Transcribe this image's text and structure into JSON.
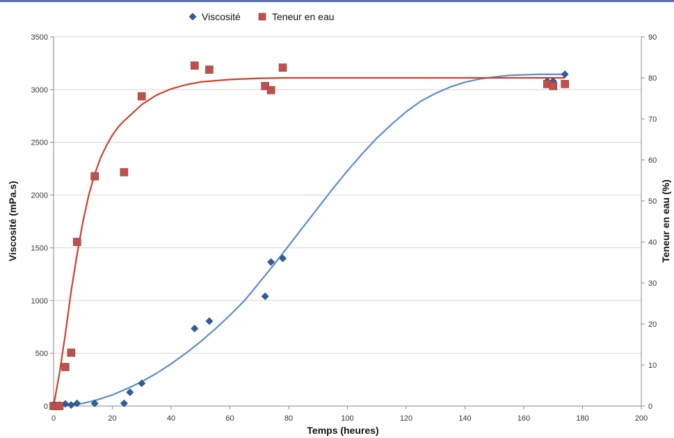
{
  "chart_data": {
    "type": "scatter",
    "xlabel": "Temps (heures)",
    "ylabel": "Viscosité (mPa.s)",
    "y2label": "Teneur en eau (%)",
    "xlim": [
      0,
      200
    ],
    "ylim": [
      0,
      3500
    ],
    "y2lim": [
      0,
      90
    ],
    "xticks": [
      0,
      20,
      40,
      60,
      80,
      100,
      120,
      140,
      160,
      180,
      200
    ],
    "yticks": [
      0,
      500,
      1000,
      1500,
      2000,
      2500,
      3000,
      3500
    ],
    "y2ticks": [
      0,
      10,
      20,
      30,
      40,
      50,
      60,
      70,
      80,
      90
    ],
    "grid": true,
    "legend_position": "top",
    "series": [
      {
        "name": "Viscosité",
        "axis": "left",
        "marker": "diamond",
        "color": "#2e5f9e",
        "x": [
          0,
          2,
          4,
          6,
          8,
          14,
          24,
          26,
          30,
          48,
          53,
          72,
          74,
          78,
          168,
          170,
          174
        ],
        "y": [
          10,
          10,
          20,
          10,
          25,
          25,
          25,
          130,
          215,
          735,
          805,
          1040,
          1365,
          1400,
          3080,
          3080,
          3145
        ]
      },
      {
        "name": "Teneur en eau",
        "axis": "right",
        "marker": "square",
        "color": "#c0504d",
        "x": [
          0,
          1,
          2,
          4,
          6,
          8,
          14,
          24,
          30,
          48,
          53,
          72,
          74,
          78,
          168,
          170,
          174
        ],
        "y": [
          0,
          0,
          0,
          9.5,
          13,
          40,
          56,
          57,
          75.5,
          83,
          82,
          78,
          77,
          82.5,
          78.5,
          78,
          78.5
        ]
      }
    ],
    "fit_lines": [
      {
        "series": "Viscosité",
        "color": "#5b8bd0",
        "x": [
          0,
          5,
          10,
          15,
          20,
          25,
          30,
          35,
          40,
          45,
          50,
          55,
          60,
          65,
          70,
          75,
          80,
          85,
          90,
          95,
          100,
          105,
          110,
          115,
          120,
          125,
          130,
          135,
          140,
          145,
          150,
          155,
          160,
          165,
          170,
          174
        ],
        "y": [
          0,
          10,
          25,
          60,
          105,
          165,
          230,
          310,
          400,
          500,
          610,
          730,
          860,
          1000,
          1170,
          1340,
          1520,
          1700,
          1880,
          2060,
          2230,
          2390,
          2540,
          2670,
          2790,
          2890,
          2965,
          3025,
          3070,
          3100,
          3120,
          3135,
          3140,
          3145,
          3145,
          3145
        ]
      },
      {
        "series": "Teneur en eau",
        "color": "#d0402b",
        "x": [
          0,
          2,
          4,
          6,
          8,
          10,
          12,
          14,
          16,
          18,
          20,
          22,
          24,
          27,
          30,
          35,
          40,
          45,
          50,
          60,
          70,
          80,
          100,
          130,
          174
        ],
        "y": [
          0,
          8,
          17.5,
          28,
          37,
          45,
          51.5,
          56.5,
          60.5,
          63.5,
          66,
          68,
          69.5,
          71.5,
          73.5,
          75.8,
          77.3,
          78.3,
          79,
          79.6,
          79.9,
          80,
          80,
          80,
          80
        ]
      }
    ]
  }
}
